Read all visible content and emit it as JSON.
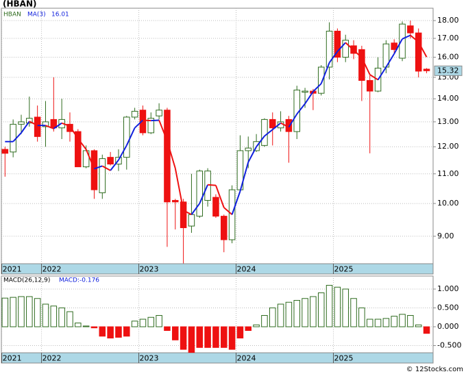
{
  "chart_data": {
    "type": "candlestick",
    "title": "(HBAN)",
    "symbol": "HBAN",
    "footer": "© 12Stocks.com",
    "ylog": true,
    "ylim": [
      8.24,
      18.73
    ],
    "yticks": [
      {
        "value": 9,
        "label": "9.00"
      },
      {
        "value": 10,
        "label": "10.00"
      },
      {
        "value": 11,
        "label": "11.00"
      },
      {
        "value": 12,
        "label": "12.00"
      },
      {
        "value": 13,
        "label": "13.00"
      },
      {
        "value": 14,
        "label": "14.00"
      },
      {
        "value": 15,
        "label": "15.00"
      },
      {
        "value": 16,
        "label": "16.00"
      },
      {
        "value": 17,
        "label": "17.00"
      },
      {
        "value": 18,
        "label": "18.00"
      }
    ],
    "xlim": [
      -0.45,
      52.8
    ],
    "xticks": [
      {
        "value": -0.4,
        "label": "2021"
      },
      {
        "value": 4.5,
        "label": "2022"
      },
      {
        "value": 16.5,
        "label": "2023"
      },
      {
        "value": 28.5,
        "label": "2024"
      },
      {
        "value": 40.5,
        "label": "2025"
      }
    ],
    "up_color": "#2e6b1e",
    "down_color": "#ee1111",
    "open": [
      11.9,
      11.8,
      12.9,
      12.95,
      13.2,
      12.8,
      13.1,
      12.75,
      12.9,
      12.6,
      11.25,
      11.85,
      10.35,
      11.6,
      11.35,
      11.6,
      13.2,
      13.5,
      12.55,
      13.25,
      13.5,
      10.1,
      10.05,
      9.3,
      9.6,
      10.1,
      10.2,
      9.6,
      8.9,
      10.45,
      11.85,
      11.85,
      12.05,
      13.1,
      12.75,
      13.1,
      12.6,
      14.3,
      14.35,
      14.25,
      15.5,
      17.4,
      16.0,
      16.6,
      16.4,
      14.85,
      14.35,
      15.5,
      16.75,
      15.95,
      17.7,
      17.3,
      15.4
    ],
    "high": [
      12.0,
      13.1,
      13.3,
      14.1,
      13.7,
      13.9,
      15.0,
      14.0,
      13.4,
      12.7,
      12.05,
      11.9,
      11.7,
      11.8,
      11.9,
      13.25,
      13.6,
      13.7,
      13.4,
      13.8,
      13.6,
      10.15,
      10.15,
      11.0,
      11.15,
      11.2,
      10.3,
      9.65,
      10.6,
      12.45,
      12.4,
      12.5,
      13.15,
      13.4,
      13.45,
      13.25,
      14.6,
      14.5,
      14.45,
      15.6,
      17.9,
      17.55,
      17.2,
      16.9,
      16.6,
      15.1,
      16.0,
      16.9,
      16.95,
      17.95,
      18.0,
      17.55,
      15.45
    ],
    "low": [
      10.9,
      11.6,
      12.5,
      12.8,
      12.2,
      12.0,
      12.6,
      12.3,
      12.2,
      11.25,
      11.2,
      10.15,
      10.15,
      11.3,
      11.1,
      11.15,
      13.1,
      12.45,
      12.5,
      13.1,
      8.7,
      9.2,
      8.25,
      9.1,
      9.55,
      9.9,
      9.55,
      8.55,
      8.8,
      10.4,
      11.2,
      11.8,
      12.0,
      12.05,
      12.6,
      11.4,
      12.3,
      13.6,
      13.5,
      14.15,
      14.9,
      15.75,
      15.75,
      15.9,
      13.9,
      11.75,
      14.3,
      15.2,
      16.2,
      15.8,
      17.0,
      15.0,
      15.2
    ],
    "close": [
      11.75,
      12.9,
      13.0,
      13.15,
      12.4,
      13.0,
      12.75,
      13.1,
      12.6,
      11.25,
      11.85,
      10.45,
      11.55,
      11.35,
      11.6,
      13.2,
      13.45,
      12.55,
      13.15,
      13.5,
      10.05,
      10.05,
      9.25,
      9.65,
      11.1,
      11.1,
      9.6,
      8.9,
      10.45,
      11.85,
      11.95,
      12.2,
      13.1,
      12.75,
      13.0,
      12.6,
      14.4,
      14.35,
      14.25,
      15.5,
      17.4,
      16.0,
      16.9,
      16.2,
      14.85,
      14.35,
      15.45,
      16.7,
      16.4,
      17.8,
      17.3,
      15.3,
      15.32
    ],
    "ma": {
      "name": "MA(3)",
      "up_color": "#1020dd",
      "down_color": "#ee1111",
      "values": [
        12.2,
        12.2,
        12.55,
        13.02,
        12.85,
        12.85,
        12.72,
        12.95,
        12.82,
        12.32,
        11.9,
        11.18,
        11.28,
        11.12,
        11.5,
        12.05,
        12.75,
        13.07,
        13.05,
        13.07,
        12.23,
        11.2,
        9.78,
        9.65,
        10.0,
        10.62,
        10.6,
        9.87,
        9.65,
        10.4,
        11.42,
        12.0,
        12.42,
        12.68,
        12.95,
        12.78,
        13.33,
        13.78,
        14.33,
        14.7,
        15.72,
        16.3,
        16.77,
        16.37,
        15.98,
        15.13,
        14.88,
        15.5,
        16.18,
        16.97,
        17.17,
        16.8,
        16.01
      ]
    },
    "macd": {
      "name": "MACD(26,12,9)",
      "last_label": "MACD:-0.176",
      "ylim": [
        -0.69,
        1.345
      ],
      "yticks": [
        {
          "value": -0.5,
          "label": "-0.500"
        },
        {
          "value": 0,
          "label": "0.000"
        },
        {
          "value": 0.5,
          "label": "0.500"
        },
        {
          "value": 1,
          "label": "1.000"
        }
      ],
      "values": [
        0.76,
        0.78,
        0.8,
        0.8,
        0.75,
        0.6,
        0.55,
        0.5,
        0.4,
        0.1,
        0.02,
        -0.03,
        -0.25,
        -0.3,
        -0.28,
        -0.25,
        0.15,
        0.2,
        0.25,
        0.3,
        -0.1,
        -0.35,
        -0.6,
        -0.68,
        -0.55,
        -0.55,
        -0.55,
        -0.55,
        -0.6,
        -0.3,
        -0.1,
        0.05,
        0.3,
        0.5,
        0.6,
        0.65,
        0.7,
        0.75,
        0.8,
        0.9,
        1.1,
        1.05,
        1.0,
        0.75,
        0.5,
        0.2,
        0.2,
        0.22,
        0.28,
        0.33,
        0.3,
        0.05,
        -0.176
      ]
    }
  }
}
